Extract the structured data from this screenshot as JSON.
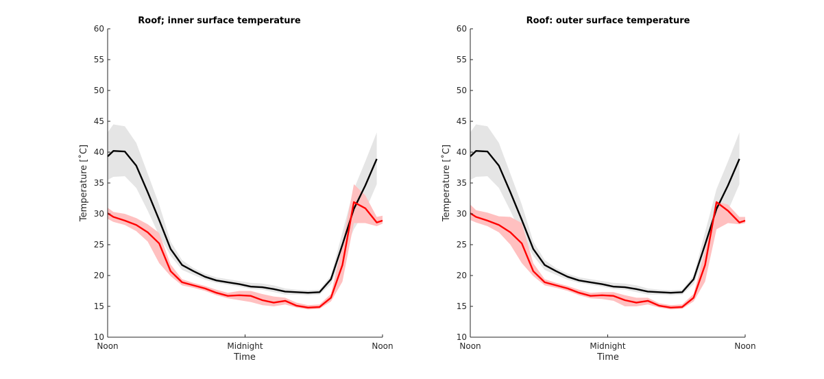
{
  "colors": {
    "series_black": "#000000",
    "series_red": "#ff0000",
    "band_black": "#e5e5e5",
    "band_red": "#ffc0c0",
    "axis": "#262626",
    "background": "#ffffff"
  },
  "chart_data": [
    {
      "type": "line",
      "title": "Roof; inner surface temperature",
      "xlabel": "Time",
      "ylabel": "Temperature [˚C]",
      "ylim": [
        10,
        60
      ],
      "yticks": [
        10,
        15,
        20,
        25,
        30,
        35,
        40,
        45,
        50,
        55,
        60
      ],
      "xlim": [
        0,
        24
      ],
      "xticks": [
        0,
        12,
        24
      ],
      "xticklabels": [
        "Noon",
        "Midnight",
        "Noon"
      ],
      "grid": false,
      "x": [
        0,
        0.5,
        1.5,
        2.5,
        3.5,
        4.5,
        5.5,
        6.5,
        7.5,
        8.5,
        9.5,
        10.5,
        11.5,
        12.5,
        13.5,
        14.5,
        15.5,
        16.5,
        17.5,
        18.5,
        19.5,
        20.5,
        21.5,
        22.5,
        23.5,
        24
      ],
      "series": [
        {
          "color": "#000000",
          "values": [
            39.3,
            40.2,
            40.1,
            37.8,
            33.5,
            29.0,
            24.3,
            21.7,
            20.7,
            19.8,
            19.2,
            18.9,
            18.6,
            18.2,
            18.1,
            17.8,
            17.4,
            17.3,
            17.2,
            17.3,
            19.4,
            25.0,
            30.8,
            34.6,
            38.9,
            null
          ],
          "band_upper": [
            43.2,
            44.5,
            44.2,
            41.5,
            36.5,
            31.5,
            25.5,
            22.5,
            21.2,
            20.3,
            19.7,
            19.4,
            19.1,
            18.8,
            18.7,
            18.4,
            17.9,
            17.7,
            17.6,
            17.7,
            20.0,
            27.0,
            34.0,
            38.5,
            43.2,
            null
          ],
          "band_lower": [
            35.5,
            36.0,
            36.1,
            34.2,
            30.5,
            26.5,
            23.2,
            20.9,
            20.1,
            19.3,
            18.8,
            18.5,
            18.2,
            17.8,
            17.7,
            17.3,
            16.9,
            16.9,
            16.8,
            16.9,
            18.6,
            23.0,
            27.5,
            30.5,
            34.8,
            null
          ]
        },
        {
          "color": "#ff0000",
          "values": [
            30.1,
            29.5,
            28.9,
            28.2,
            27.0,
            25.2,
            20.7,
            18.9,
            18.4,
            17.9,
            17.2,
            16.7,
            16.8,
            16.7,
            16.0,
            15.6,
            15.9,
            15.1,
            14.8,
            14.9,
            16.4,
            21.7,
            31.9,
            30.9,
            28.6,
            28.9
          ],
          "band_upper": [
            31.0,
            30.3,
            30.0,
            29.3,
            28.3,
            26.9,
            21.8,
            19.4,
            18.8,
            18.3,
            17.7,
            17.2,
            17.5,
            17.5,
            17.0,
            16.6,
            16.4,
            15.6,
            15.2,
            15.3,
            17.0,
            25.0,
            34.8,
            33.0,
            29.5,
            29.7
          ],
          "band_lower": [
            29.2,
            28.7,
            28.2,
            27.2,
            25.5,
            22.0,
            19.9,
            18.4,
            18.0,
            17.5,
            16.8,
            16.3,
            16.0,
            15.7,
            15.2,
            15.0,
            15.3,
            14.8,
            14.5,
            14.6,
            15.8,
            19.0,
            28.5,
            28.5,
            28.0,
            28.4
          ]
        }
      ]
    },
    {
      "type": "line",
      "title": "Roof: outer surface temperature",
      "xlabel": "Time",
      "ylabel": "Temperature [˚C]",
      "ylim": [
        10,
        60
      ],
      "yticks": [
        10,
        15,
        20,
        25,
        30,
        35,
        40,
        45,
        50,
        55,
        60
      ],
      "xlim": [
        0,
        24
      ],
      "xticks": [
        0,
        12,
        24
      ],
      "xticklabels": [
        "Noon",
        "Midnight",
        "Noon"
      ],
      "grid": false,
      "x": [
        0,
        0.5,
        1.5,
        2.5,
        3.5,
        4.5,
        5.5,
        6.5,
        7.5,
        8.5,
        9.5,
        10.5,
        11.5,
        12.5,
        13.5,
        14.5,
        15.5,
        16.5,
        17.5,
        18.5,
        19.5,
        20.5,
        21.5,
        22.5,
        23.5,
        24
      ],
      "series": [
        {
          "color": "#000000",
          "values": [
            39.3,
            40.2,
            40.1,
            37.8,
            33.5,
            29.0,
            24.3,
            21.7,
            20.7,
            19.8,
            19.2,
            18.9,
            18.6,
            18.2,
            18.1,
            17.8,
            17.4,
            17.3,
            17.2,
            17.3,
            19.4,
            25.0,
            30.8,
            34.6,
            38.9,
            null
          ],
          "band_upper": [
            43.2,
            44.5,
            44.2,
            41.5,
            36.5,
            31.5,
            25.5,
            22.5,
            21.2,
            20.3,
            19.7,
            19.4,
            19.1,
            18.8,
            18.7,
            18.4,
            17.9,
            17.7,
            17.6,
            17.7,
            20.0,
            27.0,
            34.0,
            38.5,
            43.2,
            null
          ],
          "band_lower": [
            35.5,
            36.0,
            36.1,
            34.2,
            30.5,
            26.5,
            23.2,
            20.9,
            20.1,
            19.3,
            18.8,
            18.5,
            18.2,
            17.8,
            17.7,
            17.3,
            16.9,
            16.9,
            16.8,
            16.9,
            18.6,
            23.0,
            27.5,
            30.5,
            34.8,
            null
          ]
        },
        {
          "color": "#ff0000",
          "values": [
            30.1,
            29.5,
            28.9,
            28.2,
            27.0,
            25.2,
            20.7,
            18.9,
            18.4,
            17.9,
            17.2,
            16.7,
            16.8,
            16.7,
            16.0,
            15.6,
            15.9,
            15.1,
            14.8,
            14.9,
            16.4,
            21.7,
            31.9,
            30.5,
            28.6,
            28.9
          ],
          "band_upper": [
            31.5,
            30.6,
            30.2,
            29.6,
            29.5,
            28.5,
            22.0,
            19.4,
            18.8,
            18.3,
            17.7,
            17.2,
            17.3,
            17.3,
            16.8,
            16.4,
            16.4,
            15.5,
            15.2,
            15.3,
            17.0,
            24.0,
            32.0,
            31.5,
            29.5,
            29.5
          ],
          "band_lower": [
            29.0,
            28.6,
            28.0,
            27.0,
            25.0,
            22.0,
            19.9,
            18.4,
            18.0,
            17.5,
            16.8,
            16.3,
            16.2,
            15.9,
            15.0,
            15.0,
            15.3,
            14.8,
            14.5,
            14.6,
            15.8,
            19.0,
            27.5,
            28.5,
            28.3,
            28.5
          ]
        }
      ]
    }
  ]
}
